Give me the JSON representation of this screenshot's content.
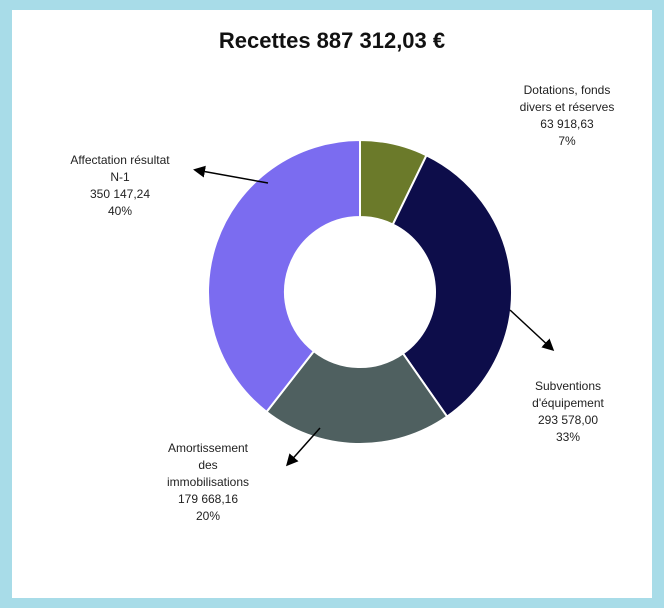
{
  "chart_data": {
    "type": "donut",
    "title": "Recettes 887 312,03 €",
    "categories": [
      "Dotations, fonds divers et réserves",
      "Subventions d'équipement",
      "Amortissement des immobilisations",
      "Affectation résultat N-1"
    ],
    "values": [
      63918.63,
      293578.0,
      179668.16,
      350147.24
    ],
    "value_labels": [
      "63 918,63",
      "293 578,00",
      "179 668,16",
      "350 147,24"
    ],
    "percentages": [
      7,
      33,
      20,
      40
    ],
    "percentage_labels": [
      "7%",
      "33%",
      "20%",
      "40%"
    ],
    "colors": [
      "#6b7a2a",
      "#0d0d4a",
      "#4f6060",
      "#7b6cf0"
    ]
  }
}
